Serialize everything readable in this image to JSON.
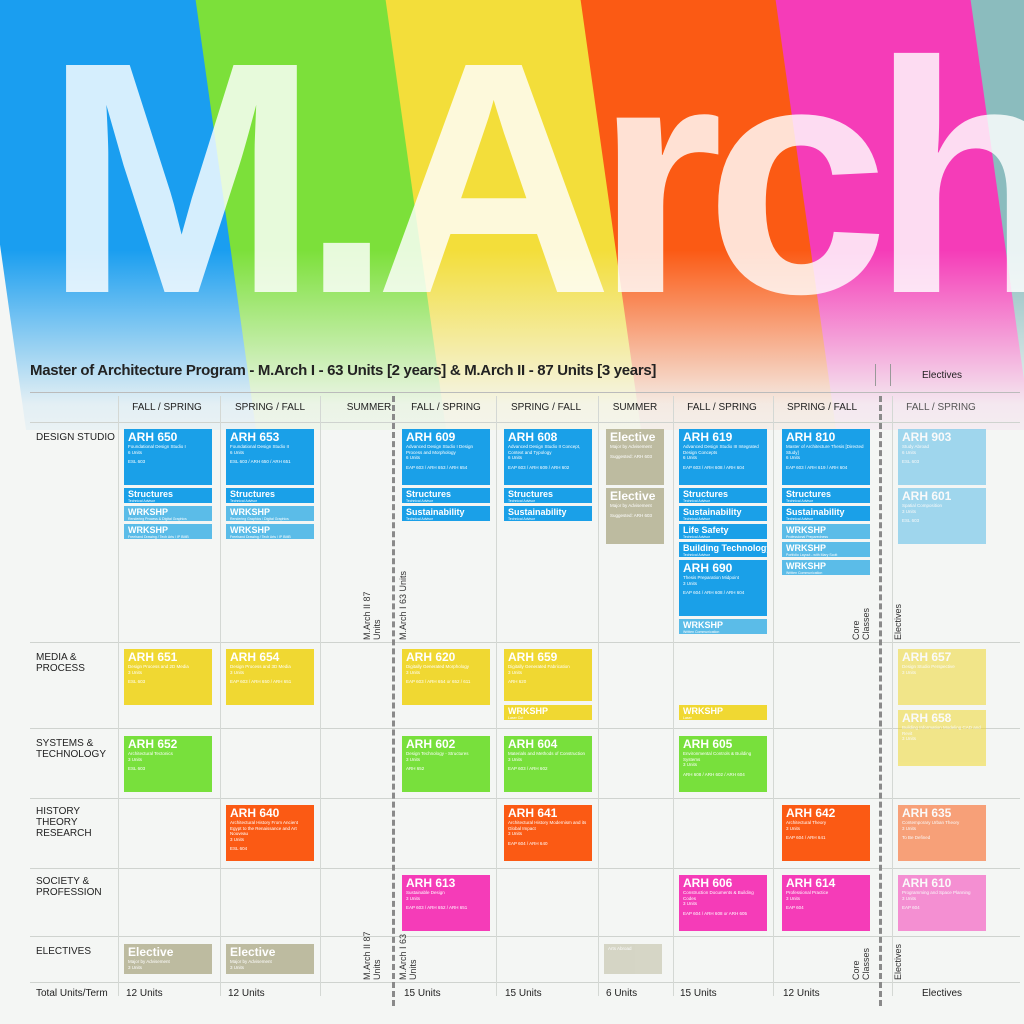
{
  "banner": {
    "big_title": "M.Arch",
    "stripe_colors": [
      "#1a9ef0",
      "#7ce03a",
      "#f3de3a",
      "#fb5a14",
      "#f53cb8",
      "#8bbcbe"
    ]
  },
  "program_title": "Master of Architecture Program - M.Arch I - 63 Units [2 years] &  M.Arch II - 87 Units [3 years]",
  "electives_header": "Electives",
  "column_headers": [
    "FALL / SPRING",
    "SPRING / FALL",
    "SUMMER",
    "FALL / SPRING",
    "SPRING / FALL",
    "SUMMER",
    "FALL / SPRING",
    "SPRING / FALL",
    "FALL / SPRING"
  ],
  "row_labels": {
    "design": "DESIGN STUDIO",
    "media": "MEDIA & PROCESS",
    "systems": "SYSTEMS & TECHNOLOGY",
    "history": "HISTORY THEORY RESEARCH",
    "society": "SOCIETY & PROFESSION",
    "electives": "ELECTIVES",
    "total": "Total Units/Term"
  },
  "divider_labels": {
    "march2": "M.Arch II 87 Units",
    "march1": "M.Arch I 63 Units",
    "core": "Core Classes",
    "electives": "Electives"
  },
  "courses": {
    "arh650": {
      "code": "ARH 650",
      "sub": "Foundational Design Studio I",
      "units": "6 Units",
      "pre": "ESL 603"
    },
    "arh653": {
      "code": "ARH 653",
      "sub": "Foundational Design Studio II",
      "units": "6 Units",
      "pre": "ESL 603 / ARH 650 / ARH 651"
    },
    "arh609": {
      "code": "ARH 609",
      "sub": "Advanced Design Studio I Design Process and Morphology",
      "units": "6 Units",
      "pre": "EAP 603 / ARH 653 / ARH 654"
    },
    "arh608": {
      "code": "ARH 608",
      "sub": "Advanced Design Studio II Concept, Context and Typology",
      "units": "6 Units",
      "pre": "EAP 603 / ARH 609 / ARH 602"
    },
    "elective_s1": {
      "code": "Elective",
      "sub": "Major by Advisement",
      "units": "",
      "pre": "Suggested: ARH 603"
    },
    "elective_s2": {
      "code": "Elective",
      "sub": "Major by Advisement",
      "units": "",
      "pre": "Suggested: ARH 603"
    },
    "arh619": {
      "code": "ARH 619",
      "sub": "Advanced Design Studio III Integrated Design Concepts",
      "units": "6 Units",
      "pre": "EAP 603 / ARH 608 / ARH 604"
    },
    "arh810": {
      "code": "ARH 810",
      "sub": "Master of Architecture Thesis [Directed Study]",
      "units": "6 Units",
      "pre": "EAP 603 / ARH 619 / ARH 604"
    },
    "arh903": {
      "code": "ARH 903",
      "sub": "Study Abroad",
      "units": "6 Units",
      "pre": "ESL 603"
    },
    "arh601": {
      "code": "ARH 601",
      "sub": "Spatial Composition",
      "units": "3 Units",
      "pre": "ESL 603"
    },
    "arh690": {
      "code": "ARH 690",
      "sub": "Thesis Preparation Midpoint",
      "units": "3 Units",
      "pre": "EAP 604 / ARH 608 / ARH 604"
    },
    "arh651": {
      "code": "ARH 651",
      "sub": "Design Process and 2D Media",
      "units": "3 Units",
      "pre": "ESL 603"
    },
    "arh654": {
      "code": "ARH 654",
      "sub": "Design Process and 3D Media",
      "units": "3 Units",
      "pre": "EAP 603 / ARH 650 / ARH 651"
    },
    "arh620": {
      "code": "ARH 620",
      "sub": "Digitally Generated Morphology",
      "units": "3 Units",
      "pre": "EAP 603 / ARH 654 or 652 / 611"
    },
    "arh659": {
      "code": "ARH 659",
      "sub": "Digitally Generated Fabrication",
      "units": "3 Units",
      "pre": "ARH 620"
    },
    "arh657": {
      "code": "ARH 657",
      "sub": "Design Studio Perspective",
      "units": "3 Units",
      "pre": ""
    },
    "arh658": {
      "code": "ARH 658",
      "sub": "Building Information Modeling CAD and Revit",
      "units": "3 Units",
      "pre": ""
    },
    "arh652": {
      "code": "ARH 652",
      "sub": "Architectural Tectonics",
      "units": "3 Units",
      "pre": "ESL 603"
    },
    "arh602": {
      "code": "ARH 602",
      "sub": "Design Technology - Structures",
      "units": "3 Units",
      "pre": "ARH 652"
    },
    "arh604": {
      "code": "ARH 604",
      "sub": "Materials and Methods of Construction",
      "units": "3 Units",
      "pre": "EAP 603 / ARH 602"
    },
    "arh605": {
      "code": "ARH 605",
      "sub": "Environmental Controls & Building Systems",
      "units": "3 Units",
      "pre": "ARH 608 / ARH 602 / ARH 604"
    },
    "arh640": {
      "code": "ARH 640",
      "sub": "Architectural History From Ancient Egypt to the Renaissance and Art Nouveau",
      "units": "3 Units",
      "pre": "ESL 604"
    },
    "arh641": {
      "code": "ARH 641",
      "sub": "Architectural History Modernism and its Global Impact",
      "units": "3 Units",
      "pre": "EAP 604 / ARH 640"
    },
    "arh642": {
      "code": "ARH 642",
      "sub": "Architectural Theory",
      "units": "3 Units",
      "pre": "EAP 604 / ARH 641"
    },
    "arh635": {
      "code": "ARH 635",
      "sub": "Contemporary Urban Theory",
      "units": "3 Units",
      "pre": "To Be Defined"
    },
    "arh613": {
      "code": "ARH 613",
      "sub": "Sustainable Design",
      "units": "3 Units",
      "pre": "EAP 603 / ARH 652 / ARH 651"
    },
    "arh606": {
      "code": "ARH 606",
      "sub": "Construction Documents & Building Codes",
      "units": "3 Units",
      "pre": "EAP 604 / ARH 608 or ARH 605"
    },
    "arh614": {
      "code": "ARH 614",
      "sub": "Professional Practice",
      "units": "3 Units",
      "pre": "EAP 604"
    },
    "arh610": {
      "code": "ARH 610",
      "sub": "Programming and Space Planning",
      "units": "3 Units",
      "pre": "EAP 604"
    },
    "elective_e1": {
      "code": "Elective",
      "sub": "Major by Advisement",
      "units": "3 Units",
      "pre": ""
    },
    "elective_e2": {
      "code": "Elective",
      "sub": "Major by Advisement",
      "units": "3 Units",
      "pre": ""
    }
  },
  "bars": {
    "structures": "Structures",
    "technical_advisor": "Technical Advisor",
    "wrkshp": "WRKSHP",
    "wrkshp1_sub": "Rendering Process & Digital Graphics",
    "wrkshp2_sub": "Freehand Drawing / Tech Arts / IP BMB",
    "wrkshp3_sub": "Rendering Graphics / Digital Graphics",
    "wrkshp4_sub": "Freehand Drawing / Tech Arts / IP BMB",
    "sustainability": "Sustainability",
    "life_safety": "Life Safety",
    "building_technology": "Building Technology",
    "wrkshp_prof_sub": "Professional Preparedness",
    "wrkshp_portfolio_sub": "Portfolio Layout - with Mary Scott",
    "wrkshp_written_sub": "Written Communication",
    "wrkshp_fab_sub": "Laser Cut",
    "wrkshp_media_sub": "Laser"
  },
  "summer_note": "Arts Abroad",
  "totals": [
    "12 Units",
    "12 Units",
    "",
    "15 Units",
    "15 Units",
    "6 Units",
    "15 Units",
    "12 Units",
    "Electives"
  ]
}
